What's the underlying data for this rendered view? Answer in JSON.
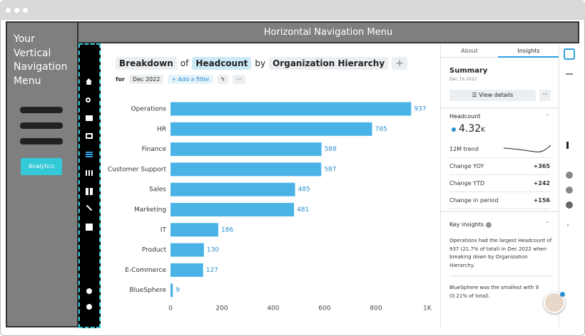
{
  "left_nav": {
    "title": "Your Vertical Navigation Menu",
    "button": "Analytics"
  },
  "top_nav": {
    "title": "Horizontal Navigation Menu"
  },
  "query": {
    "breakdown": "Breakdown",
    "of": "of",
    "metric": "Headcount",
    "by": "by",
    "dimension": "Organization Hierarchy",
    "for": "for",
    "period": "Dec 2022",
    "add_filter": "+ Add a filter"
  },
  "chart_data": {
    "type": "bar",
    "orientation": "horizontal",
    "color": "#4ab3e6",
    "categories": [
      "Operations",
      "HR",
      "Finance",
      "Customer Support",
      "Sales",
      "Marketing",
      "IT",
      "Product",
      "E-Commerce",
      "BlueSphere"
    ],
    "values": [
      937,
      785,
      588,
      587,
      485,
      481,
      186,
      130,
      127,
      9
    ],
    "xlim": [
      0,
      1000
    ],
    "xticks": [
      0,
      200,
      400,
      600,
      800,
      {
        "value": 1000,
        "label": "1K"
      }
    ]
  },
  "panel": {
    "tabs": [
      "About",
      "Insights"
    ],
    "summary": {
      "title": "Summary",
      "date": "Dec 19 2022",
      "button": "View details"
    },
    "metric": {
      "name": "Headcount",
      "value": "4.32",
      "unit": "K",
      "trend_label": "12M trend",
      "rows": [
        [
          "Change YOY",
          "+365"
        ],
        [
          "Change YTD",
          "+242"
        ],
        [
          "Change in period",
          "+156"
        ]
      ]
    },
    "insights": {
      "title": "Key insights",
      "items": [
        "Operations had the largest Headcount of 937 (21.7% of total) in Dec 2022 when breaking down by Organization Hierarchy.",
        "BlueSphere was the smallest with 9 (0.21% of total)."
      ]
    }
  }
}
